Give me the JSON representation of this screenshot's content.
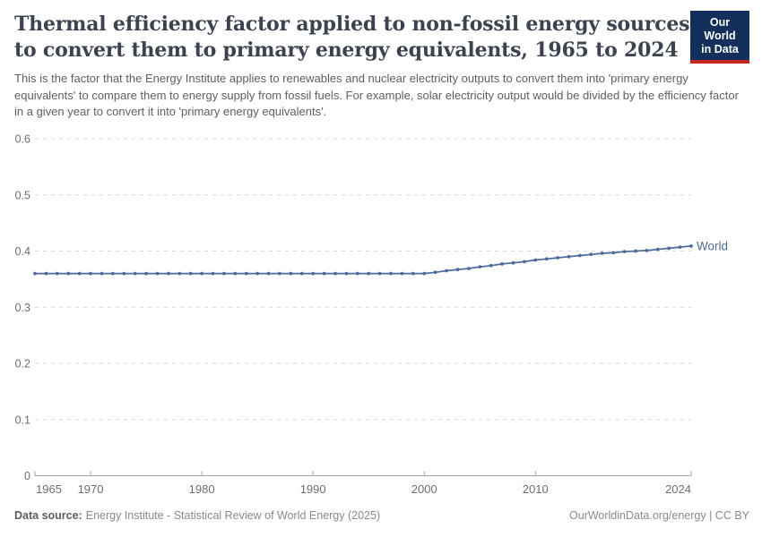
{
  "header": {
    "title": "Thermal efficiency factor applied to non-fossil energy sources to convert them to primary energy equivalents, 1965 to 2024",
    "title_lines": [
      "Thermal efficiency factor applied to non-fossil energy sources",
      "to convert them to primary energy equivalents, 1965 to 2024"
    ],
    "subtitle": "This is the factor that the Energy Institute applies to renewables and nuclear electricity outputs to convert them into 'primary energy equivalents' to compare them to energy supply from fossil fuels. For example, solar electricity output would be divided by the efficiency factor in a given year to convert it into 'primary energy equivalents'.",
    "logo": {
      "line1": "Our World",
      "line2": "in Data",
      "bg_color": "#12305B",
      "accent_color": "#C5281C"
    }
  },
  "chart_data": {
    "type": "line",
    "title": "Thermal efficiency factor applied to non-fossil energy sources to convert them to primary energy equivalents, 1965 to 2024",
    "x": [
      1965,
      1966,
      1967,
      1968,
      1969,
      1970,
      1971,
      1972,
      1973,
      1974,
      1975,
      1976,
      1977,
      1978,
      1979,
      1980,
      1981,
      1982,
      1983,
      1984,
      1985,
      1986,
      1987,
      1988,
      1989,
      1990,
      1991,
      1992,
      1993,
      1994,
      1995,
      1996,
      1997,
      1998,
      1999,
      2000,
      2001,
      2002,
      2003,
      2004,
      2005,
      2006,
      2007,
      2008,
      2009,
      2010,
      2011,
      2012,
      2013,
      2014,
      2015,
      2016,
      2017,
      2018,
      2019,
      2020,
      2021,
      2022,
      2023,
      2024
    ],
    "series": [
      {
        "name": "World",
        "color": "#4C6A9C",
        "values": [
          0.36,
          0.36,
          0.36,
          0.36,
          0.36,
          0.36,
          0.36,
          0.36,
          0.36,
          0.36,
          0.36,
          0.36,
          0.36,
          0.36,
          0.36,
          0.36,
          0.36,
          0.36,
          0.36,
          0.36,
          0.36,
          0.36,
          0.36,
          0.36,
          0.36,
          0.36,
          0.36,
          0.36,
          0.36,
          0.36,
          0.36,
          0.36,
          0.36,
          0.36,
          0.36,
          0.36,
          0.362,
          0.365,
          0.367,
          0.369,
          0.372,
          0.374,
          0.377,
          0.379,
          0.381,
          0.384,
          0.386,
          0.388,
          0.39,
          0.392,
          0.394,
          0.396,
          0.397,
          0.399,
          0.4,
          0.401,
          0.403,
          0.405,
          0.407,
          0.409
        ]
      }
    ],
    "xlabel": "",
    "ylabel": "",
    "ylim": [
      0,
      0.6
    ],
    "yticks": [
      0,
      0.1,
      0.2,
      0.3,
      0.4,
      0.5,
      0.6
    ],
    "ytick_labels": [
      "0",
      "0.1",
      "0.2",
      "0.3",
      "0.4",
      "0.5",
      "0.6"
    ],
    "xticks": [
      1965,
      1970,
      1980,
      1990,
      2000,
      2010,
      2024
    ],
    "grid": "horizontal-dashed",
    "legend_position": "end-of-line-label"
  },
  "footer": {
    "source_label": "Data source:",
    "source_text": "Energy Institute - Statistical Review of World Energy (2025)",
    "rights": "OurWorldinData.org/energy | CC BY"
  }
}
